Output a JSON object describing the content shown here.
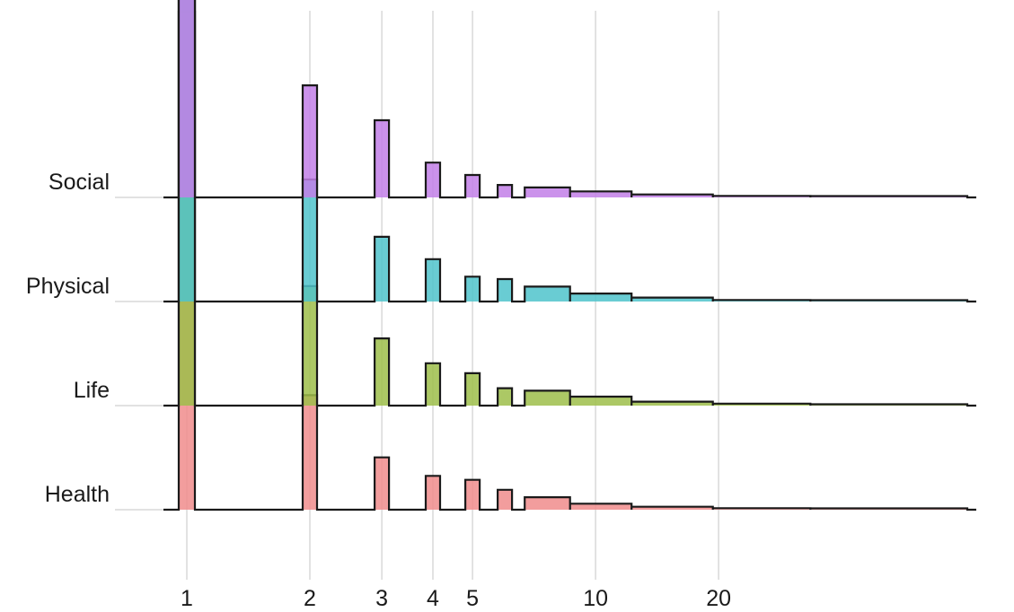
{
  "chart_data": {
    "type": "area",
    "subtype": "ridgeline-histogram",
    "title": "",
    "xlabel": "",
    "ylabel": "",
    "x_scale": "log",
    "x_ticks": [
      1,
      2,
      3,
      4,
      5,
      10,
      20
    ],
    "x_tick_labels": [
      "1",
      "2",
      "3",
      "4",
      "5",
      "10",
      "20"
    ],
    "grid": true,
    "legend": "none",
    "series": [
      {
        "name": "Health",
        "color": "#F08C8C",
        "bins": [
          {
            "x": 1,
            "density": 1.0
          },
          {
            "x": 2,
            "density": 0.23
          },
          {
            "x": 3,
            "density": 0.105
          },
          {
            "x": 4,
            "density": 0.068
          },
          {
            "x": 5,
            "density": 0.06
          },
          {
            "x": 6,
            "density": 0.04
          },
          {
            "x": 7.5,
            "density": 0.025
          },
          {
            "x": 10,
            "density": 0.012
          },
          {
            "x": 15,
            "density": 0.006
          },
          {
            "x": 25,
            "density": 0.003
          },
          {
            "x": 45,
            "density": 0.002
          }
        ]
      },
      {
        "name": "Life",
        "color": "#9DBE4A",
        "bins": [
          {
            "x": 1,
            "density": 1.0
          },
          {
            "x": 2,
            "density": 0.24
          },
          {
            "x": 3,
            "density": 0.135
          },
          {
            "x": 4,
            "density": 0.085
          },
          {
            "x": 5,
            "density": 0.065
          },
          {
            "x": 6,
            "density": 0.035
          },
          {
            "x": 7.5,
            "density": 0.03
          },
          {
            "x": 10,
            "density": 0.018
          },
          {
            "x": 15,
            "density": 0.008
          },
          {
            "x": 25,
            "density": 0.004
          },
          {
            "x": 45,
            "density": 0.002
          }
        ]
      },
      {
        "name": "Physical",
        "color": "#4FC3CB",
        "bins": [
          {
            "x": 1,
            "density": 1.0
          },
          {
            "x": 2,
            "density": 0.245
          },
          {
            "x": 3,
            "density": 0.13
          },
          {
            "x": 4,
            "density": 0.085
          },
          {
            "x": 5,
            "density": 0.05
          },
          {
            "x": 6,
            "density": 0.045
          },
          {
            "x": 7.5,
            "density": 0.03
          },
          {
            "x": 10,
            "density": 0.016
          },
          {
            "x": 15,
            "density": 0.008
          },
          {
            "x": 25,
            "density": 0.003
          },
          {
            "x": 45,
            "density": 0.002
          }
        ]
      },
      {
        "name": "Social",
        "color": "#C27FE8",
        "bins": [
          {
            "x": 1,
            "density": 1.0
          },
          {
            "x": 2,
            "density": 0.225
          },
          {
            "x": 3,
            "density": 0.155
          },
          {
            "x": 4,
            "density": 0.07
          },
          {
            "x": 5,
            "density": 0.045
          },
          {
            "x": 6,
            "density": 0.025
          },
          {
            "x": 7.5,
            "density": 0.02
          },
          {
            "x": 10,
            "density": 0.012
          },
          {
            "x": 15,
            "density": 0.006
          },
          {
            "x": 25,
            "density": 0.003
          },
          {
            "x": 45,
            "density": 0.002
          }
        ]
      }
    ]
  }
}
